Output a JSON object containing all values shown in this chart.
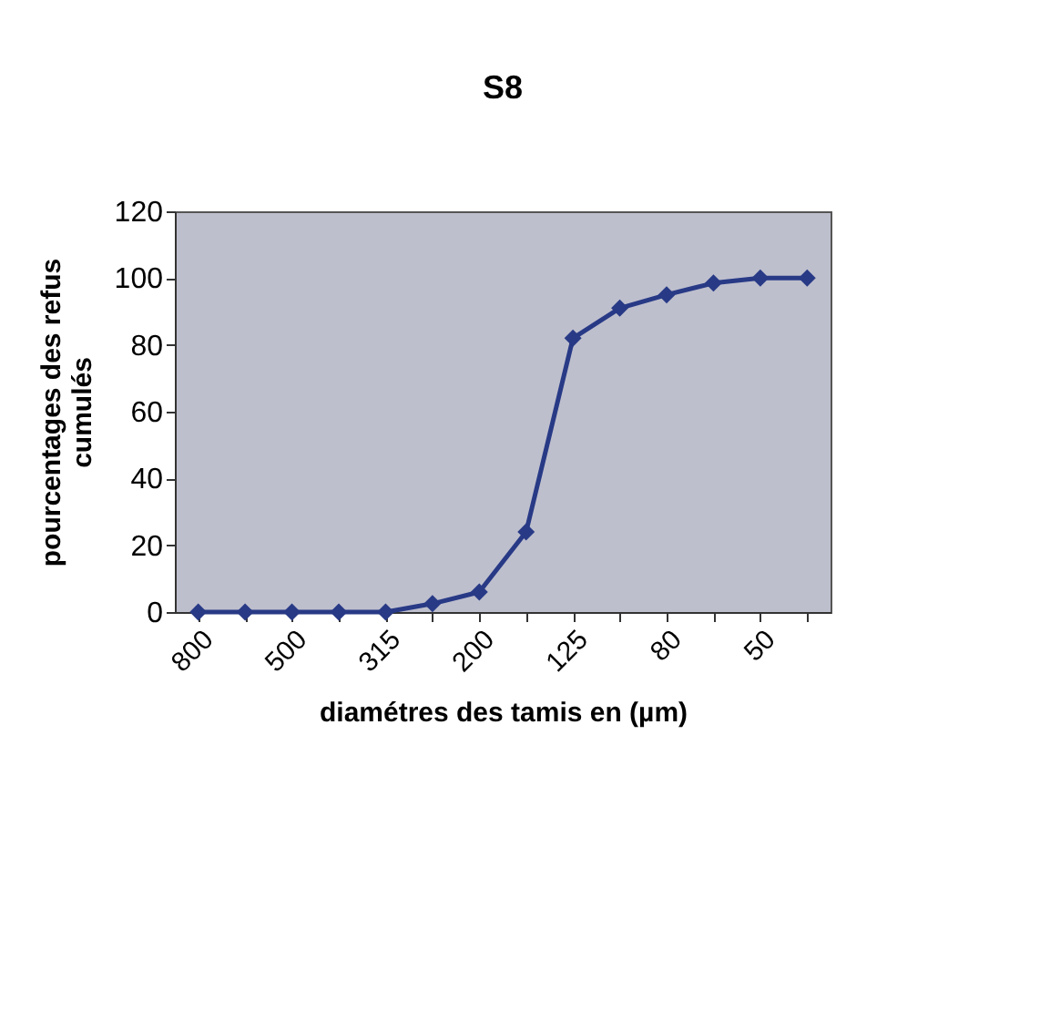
{
  "chart_data": {
    "type": "line",
    "title": "S8",
    "xlabel": "diamétres des tamis en (µm)",
    "ylabel": "pourcentages des refus cumulés",
    "categories": [
      "800",
      null,
      "500",
      null,
      "315",
      null,
      "200",
      null,
      "125",
      null,
      "80",
      null,
      "50",
      null
    ],
    "series": [
      {
        "color": "#283a86",
        "values": [
          0,
          0,
          0,
          0,
          0,
          2.5,
          6,
          24,
          82,
          91,
          95,
          98.5,
          100,
          100
        ]
      }
    ],
    "ylim": [
      0,
      120
    ],
    "yticks": [
      0,
      20,
      40,
      60,
      80,
      100,
      120
    ],
    "marker": "diamond",
    "line_style": "solid",
    "grid": false
  }
}
